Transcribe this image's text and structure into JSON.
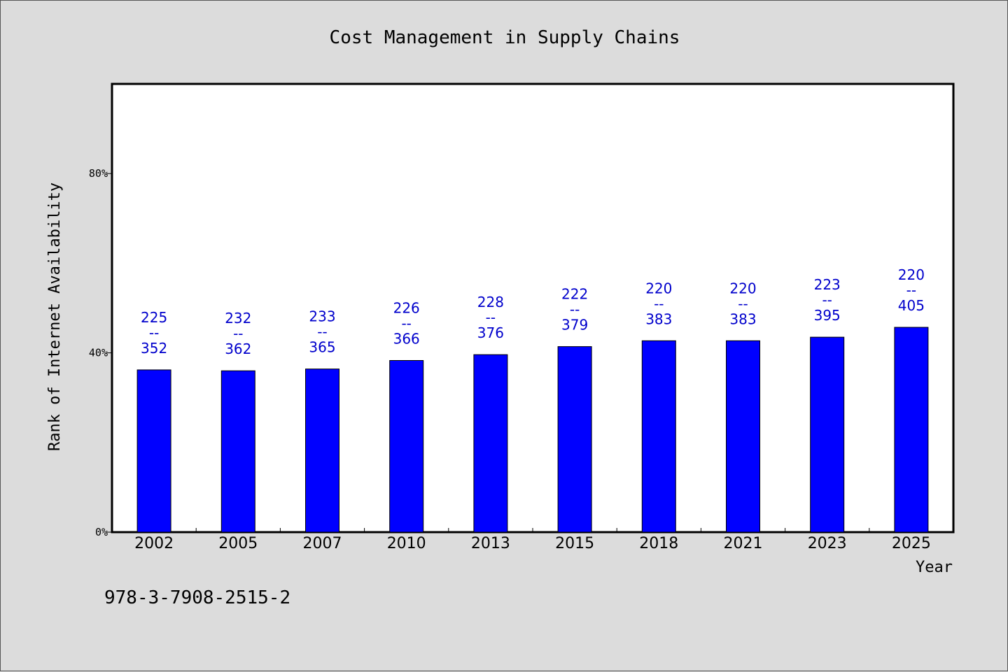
{
  "chart_data": {
    "type": "bar",
    "title": "Cost Management in Supply Chains",
    "xlabel": "Year",
    "ylabel": "Rank of Internet Availability",
    "categories": [
      "2002",
      "2005",
      "2007",
      "2010",
      "2013",
      "2015",
      "2018",
      "2021",
      "2023",
      "2025"
    ],
    "values": [
      36.2,
      36.0,
      36.4,
      38.3,
      39.6,
      41.4,
      42.7,
      42.7,
      43.5,
      45.7
    ],
    "data_labels": [
      "225\n--\n352",
      "232\n--\n362",
      "233\n--\n365",
      "226\n--\n366",
      "228\n--\n376",
      "222\n--\n379",
      "220\n--\n383",
      "220\n--\n383",
      "223\n--\n395",
      "220\n--\n405"
    ],
    "ylim": [
      0,
      100
    ],
    "yticks": [
      0,
      40,
      80
    ],
    "ytick_labels": [
      "0%",
      "40%",
      "80%"
    ],
    "bar_color": "#0000ff",
    "label_color": "#0000cc",
    "plot_background": "#ffffff",
    "page_background": "#dcdcdc",
    "grid": false,
    "legend": false
  },
  "footer": {
    "isbn": "978-3-7908-2515-2"
  }
}
